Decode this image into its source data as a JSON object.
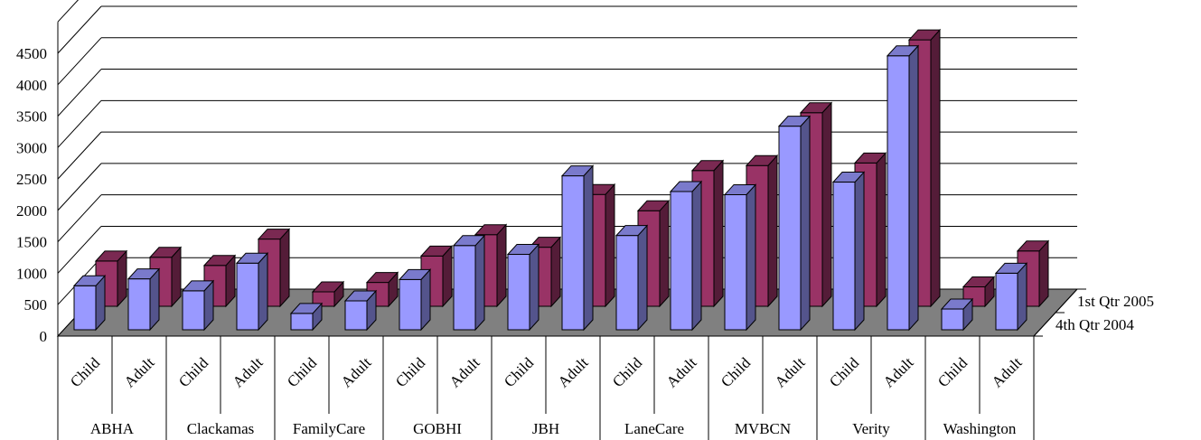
{
  "chart_data": {
    "type": "bar",
    "style": "3d-clustered-depth",
    "title": "",
    "xlabel": "",
    "ylabel": "",
    "ylim": [
      0,
      4500
    ],
    "ystep": 500,
    "grid": true,
    "yticks": [
      "0",
      "500",
      "1000",
      "1500",
      "2000",
      "2500",
      "3000",
      "3500",
      "4000",
      "4500"
    ],
    "groups": [
      "ABHA",
      "Clackamas",
      "FamilyCare",
      "GOBHI",
      "JBH",
      "LaneCare",
      "MVBCN",
      "Verity",
      "Washington"
    ],
    "subcategories": [
      "Child",
      "Adult"
    ],
    "categories": [
      "ABHA Child",
      "ABHA Adult",
      "Clackamas Child",
      "Clackamas Adult",
      "FamilyCare Child",
      "FamilyCare Adult",
      "GOBHI Child",
      "GOBHI Adult",
      "JBH Child",
      "JBH Adult",
      "LaneCare Child",
      "LaneCare Adult",
      "MVBCN Child",
      "MVBCN Adult",
      "Verity Child",
      "Verity Adult",
      "Washington Child",
      "Washington Adult"
    ],
    "series": [
      {
        "name": "4th Qtr 2004",
        "color": "#9999ff",
        "values": [
          700,
          810,
          620,
          1060,
          260,
          460,
          800,
          1340,
          1200,
          2450,
          1500,
          2200,
          2150,
          3240,
          2350,
          4360,
          330,
          900
        ]
      },
      {
        "name": "1st Qtr 2005",
        "color": "#993366",
        "values": [
          720,
          780,
          650,
          1070,
          230,
          380,
          800,
          1140,
          940,
          1780,
          1520,
          2160,
          2240,
          3080,
          2280,
          4240,
          310,
          880
        ]
      }
    ]
  }
}
